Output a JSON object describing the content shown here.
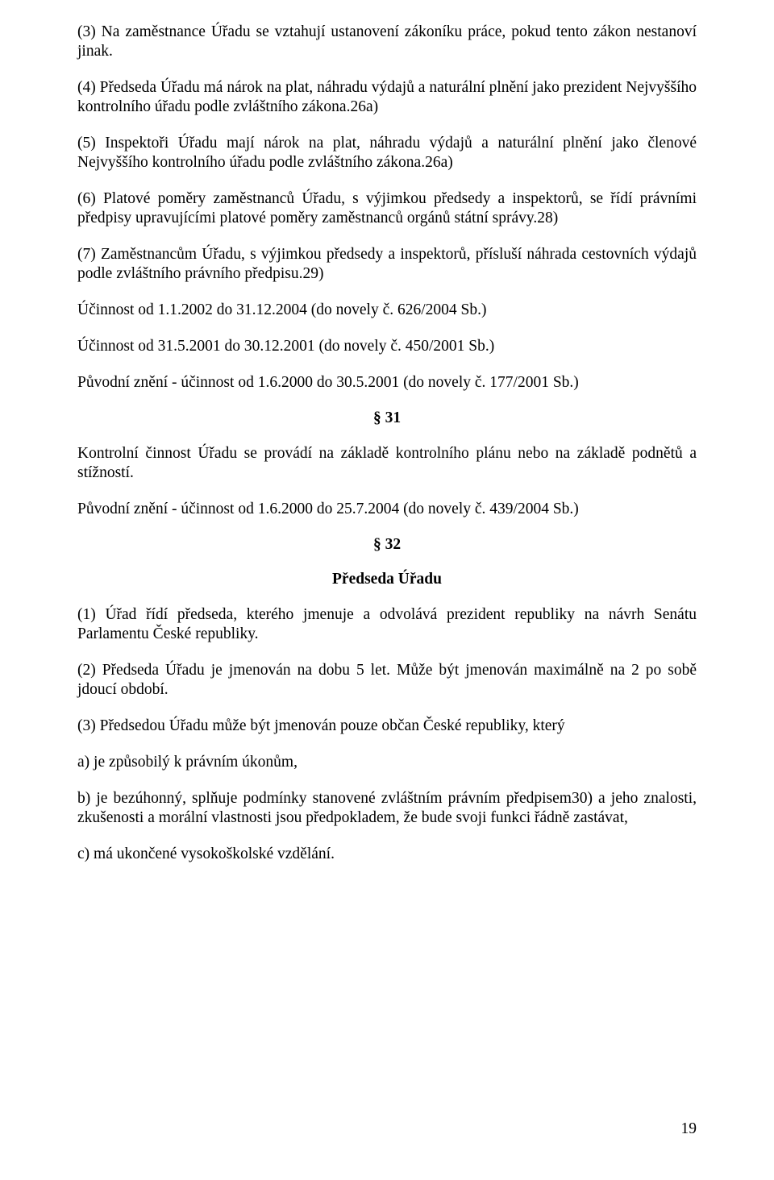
{
  "font": {
    "family": "Times New Roman",
    "body_size_pt": 12,
    "heading_weight": "bold"
  },
  "colors": {
    "text": "#000000",
    "background": "#ffffff"
  },
  "page_number": "19",
  "paragraphs": {
    "p1": "(3) Na zaměstnance Úřadu se vztahují ustanovení zákoníku práce, pokud tento zákon nestanoví jinak.",
    "p2": "(4) Předseda Úřadu má nárok na plat, náhradu výdajů a naturální plnění jako prezident Nejvyššího kontrolního úřadu podle zvláštního zákona.26a)",
    "p3": "(5) Inspektoři Úřadu mají nárok na plat, náhradu výdajů a naturální plnění jako členové Nejvyššího kontrolního úřadu podle zvláštního zákona.26a)",
    "p4": "(6) Platové poměry zaměstnanců Úřadu, s výjimkou předsedy a inspektorů, se řídí právními předpisy upravujícími platové poměry zaměstnanců orgánů státní správy.28)",
    "p5": "(7) Zaměstnancům Úřadu, s výjimkou předsedy a inspektorů, přísluší náhrada cestovních výdajů podle zvláštního právního předpisu.29)",
    "p6": "Účinnost od 1.1.2002 do 31.12.2004 (do novely č. 626/2004 Sb.)",
    "p7": "Účinnost od 31.5.2001 do 30.12.2001 (do novely č. 450/2001 Sb.)",
    "p8": "Původní znění - účinnost od 1.6.2000 do 30.5.2001 (do novely č. 177/2001 Sb.)",
    "s31_num": "§ 31",
    "p9": "Kontrolní činnost Úřadu se provádí na základě kontrolního plánu nebo na základě podnětů a stížností.",
    "p10": "Původní znění - účinnost od 1.6.2000 do 25.7.2004 (do novely č. 439/2004 Sb.)",
    "s32_num": "§ 32",
    "s32_title": "Předseda Úřadu",
    "p11": "(1) Úřad řídí předseda, kterého jmenuje a odvolává prezident republiky na návrh Senátu Parlamentu České republiky.",
    "p12": "(2) Předseda Úřadu je jmenován na dobu 5 let. Může být jmenován maximálně na 2 po sobě jdoucí období.",
    "p13": "(3) Předsedou Úřadu může být jmenován pouze občan České republiky, který",
    "p14": "a) je způsobilý k právním úkonům,",
    "p15": "b) je bezúhonný, splňuje podmínky stanovené zvláštním právním předpisem30) a jeho znalosti, zkušenosti a morální vlastnosti jsou předpokladem, že bude svoji funkci řádně zastávat,",
    "p16": "c) má ukončené vysokoškolské vzdělání."
  }
}
